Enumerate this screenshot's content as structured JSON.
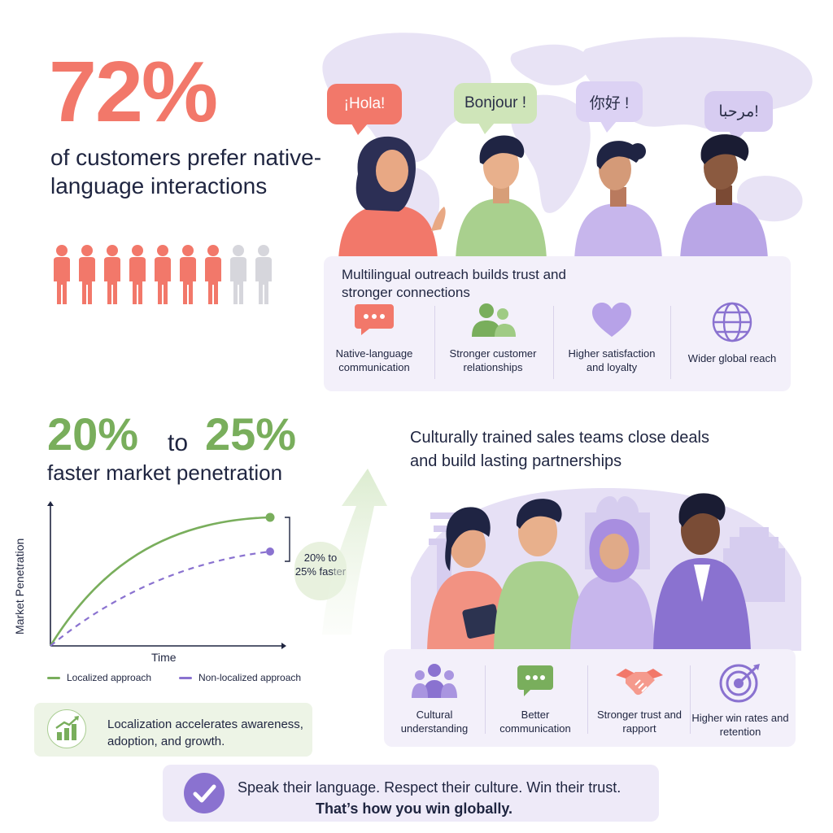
{
  "stat_native": {
    "value": "72%",
    "caption": "of customers prefer native-language interactions",
    "people_highlighted": 7,
    "people_total": 9
  },
  "greetings": {
    "spanish": "¡Hola!",
    "french": "Bonjour !",
    "chinese": "你好 !",
    "arabic": "مرحبا!"
  },
  "trust_panel": {
    "heading": "Multilingual outreach builds trust and stronger connections",
    "benefits": [
      {
        "label": "Native-language communication",
        "icon": "chat-bubble-icon"
      },
      {
        "label": "Stronger customer relationships",
        "icon": "people-icon"
      },
      {
        "label": "Higher satisfaction and loyalty",
        "icon": "heart-icon"
      },
      {
        "label": "Wider global reach",
        "icon": "globe-icon"
      }
    ]
  },
  "stat_penetration": {
    "low": "20%",
    "connector": "to",
    "high": "25%",
    "caption": "faster market penetration"
  },
  "chart_data": {
    "type": "line",
    "title": "",
    "xlabel": "Time",
    "ylabel": "Market Penetration",
    "annotation": "20% to 25% faster",
    "series": [
      {
        "name": "Localized approach",
        "color": "#79ae5c",
        "style": "solid"
      },
      {
        "name": "Non-localized approach",
        "color": "#8a72d0",
        "style": "dashed"
      }
    ]
  },
  "insight": {
    "text": "Localization accelerates awareness, adoption, and growth.",
    "icon": "growth-chart-icon"
  },
  "sales": {
    "heading": "Culturally trained sales teams close deals and build lasting partnerships",
    "benefits": [
      {
        "label": "Cultural understanding",
        "icon": "group-icon"
      },
      {
        "label": "Better communication",
        "icon": "chat-bubble-icon"
      },
      {
        "label": "Stronger trust and rapport",
        "icon": "handshake-icon"
      },
      {
        "label": "Higher win rates and retention",
        "icon": "target-icon"
      }
    ]
  },
  "footer": {
    "line1": "Speak their language. Respect their culture. Win their trust.",
    "line2": "That’s how you win globally.",
    "icon": "checkmark-icon"
  },
  "colors": {
    "coral": "#f2786a",
    "green": "#79ae5c",
    "purple": "#8a72d0",
    "lavender_bg": "#f3f0fa",
    "navy_text": "#1f2540"
  }
}
